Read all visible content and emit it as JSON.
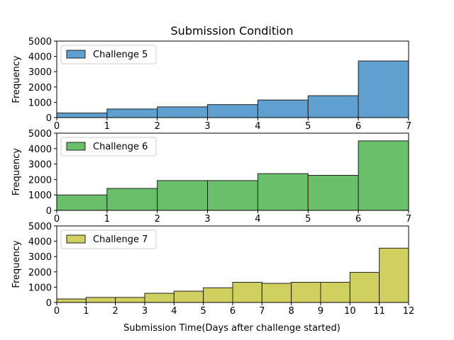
{
  "chart_data": {
    "type": "bar",
    "title": "Submission Condition",
    "xlabel": "Submission Time(Days after challenge started)",
    "panels": [
      {
        "name": "Challenge 5",
        "color": "#5fa0d0",
        "ylabel": "Frequency",
        "xlim": [
          0,
          7
        ],
        "ylim": [
          0,
          5000
        ],
        "xticks": [
          0,
          1,
          2,
          3,
          4,
          5,
          6,
          7
        ],
        "yticks": [
          0,
          1000,
          2000,
          3000,
          4000,
          5000
        ],
        "bins": [
          0,
          1,
          2,
          3,
          4,
          5,
          6,
          7
        ],
        "values": [
          300,
          560,
          700,
          850,
          1150,
          1430,
          3700
        ],
        "legend": "top-left",
        "grid": false
      },
      {
        "name": "Challenge 6",
        "color": "#6ac06a",
        "ylabel": "Frequency",
        "xlim": [
          0,
          7
        ],
        "ylim": [
          0,
          5000
        ],
        "xticks": [
          0,
          1,
          2,
          3,
          4,
          5,
          6,
          7
        ],
        "yticks": [
          0,
          1000,
          2000,
          3000,
          4000,
          5000
        ],
        "bins": [
          0,
          1,
          2,
          3,
          4,
          5,
          6,
          7
        ],
        "values": [
          1000,
          1420,
          1930,
          1930,
          2380,
          2270,
          4500
        ],
        "legend": "top-left",
        "grid": false
      },
      {
        "name": "Challenge 7",
        "color": "#d0d060",
        "ylabel": "Frequency",
        "xlim": [
          0,
          12
        ],
        "ylim": [
          0,
          5000
        ],
        "xticks": [
          0,
          1,
          2,
          3,
          4,
          5,
          6,
          7,
          8,
          9,
          10,
          11,
          12
        ],
        "yticks": [
          0,
          1000,
          2000,
          3000,
          4000,
          5000
        ],
        "bins": [
          0,
          1,
          2,
          3,
          4,
          5,
          6,
          7,
          8,
          9,
          10,
          11,
          12
        ],
        "values": [
          230,
          330,
          330,
          600,
          740,
          960,
          1320,
          1250,
          1320,
          1320,
          1970,
          3550
        ],
        "legend": "top-left",
        "grid": false
      }
    ]
  }
}
